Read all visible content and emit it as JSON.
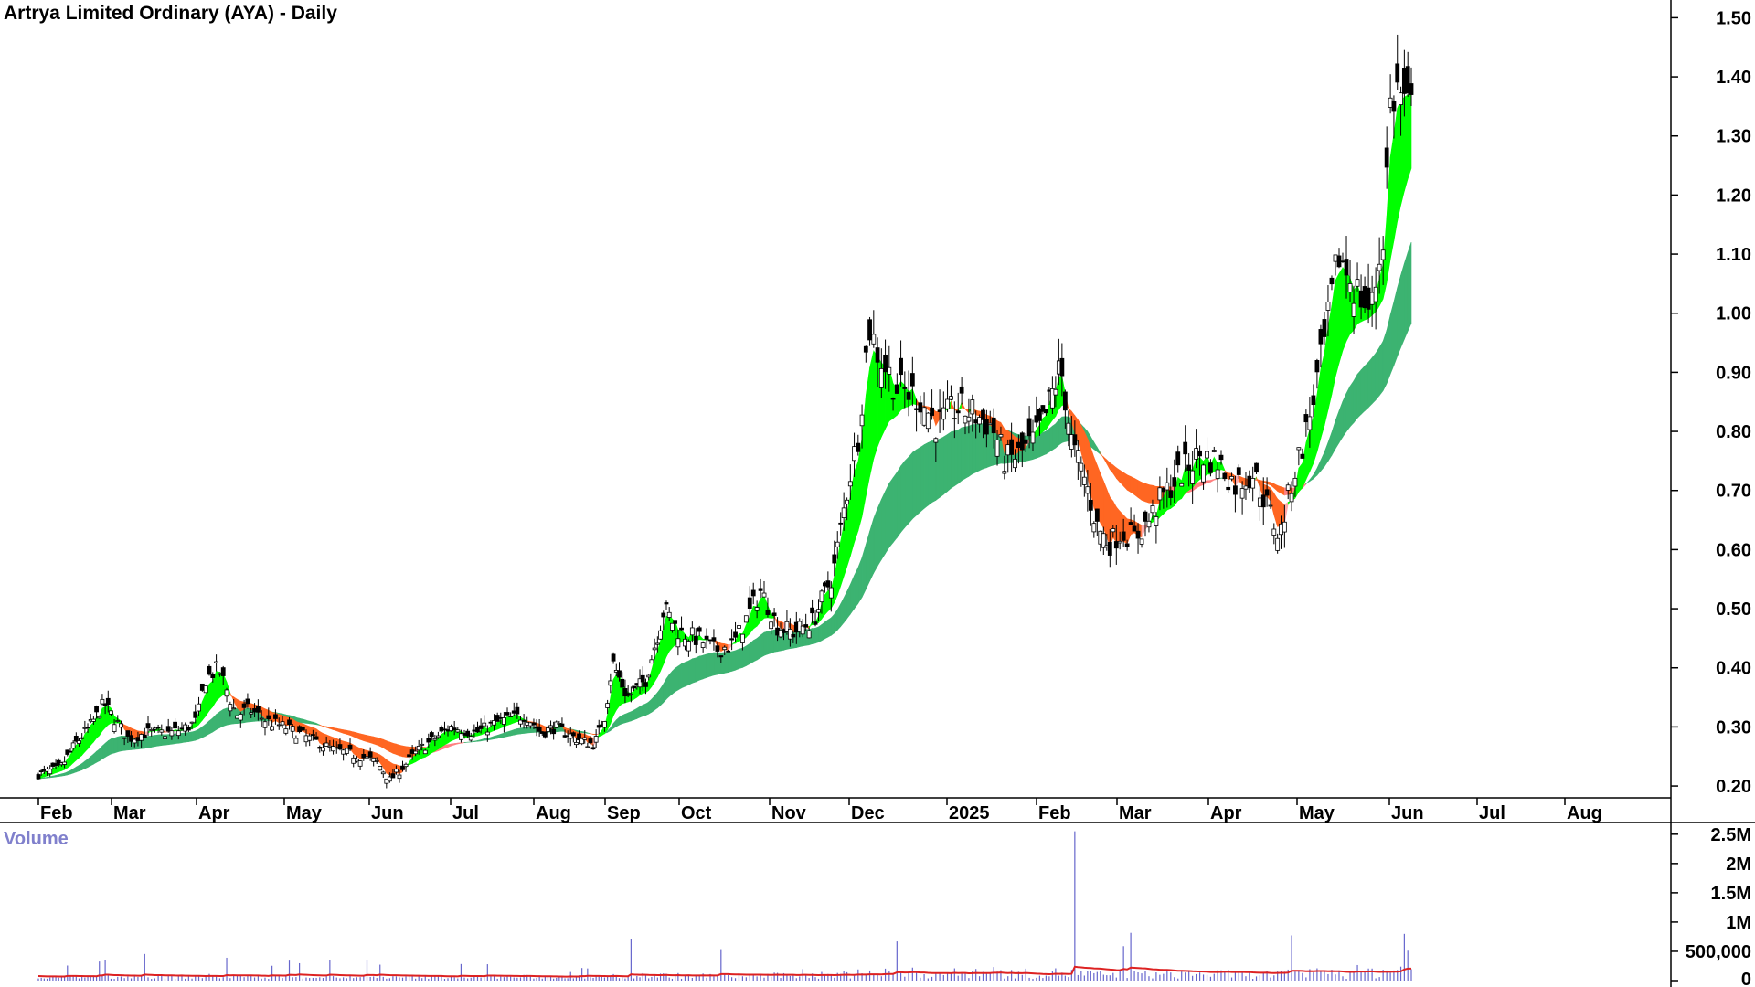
{
  "header": {
    "title": "Artrya Limited Ordinary (AYA) - Daily"
  },
  "volume_panel": {
    "title": "Volume"
  },
  "colors": {
    "up_candle": "#ffffff",
    "down_candle": "#000000",
    "short_band_bull": "#00ff00",
    "short_band_bear": "#ff6622",
    "short_band_weak": "#ffaaaa",
    "long_band_bull": "#3cb371",
    "long_band_bear": "#ff6622",
    "long_band_weak": "#ff8080",
    "volume_bar": "#6666cc",
    "volume_avg": "#dd2222"
  },
  "chart_data": [
    {
      "type": "candlestick",
      "title": "Artrya Limited Ordinary (AYA) - Daily",
      "x_tick_labels": [
        "Feb",
        "Mar",
        "Apr",
        "May",
        "Jun",
        "Jul",
        "Aug",
        "Sep",
        "Oct",
        "Nov",
        "Dec",
        "2025",
        "Feb",
        "Mar",
        "Apr",
        "May",
        "Jun",
        "Jul",
        "Aug"
      ],
      "x_ticks_month_index": [
        1,
        2,
        3,
        4,
        5,
        6,
        7,
        8,
        9,
        10,
        11,
        12,
        13,
        14,
        15,
        16,
        17,
        18,
        19
      ],
      "y_tick_labels": [
        "1.50",
        "1.40",
        "1.30",
        "1.20",
        "1.10",
        "1.00",
        "0.90",
        "0.80",
        "0.70",
        "0.60",
        "0.50",
        "0.40",
        "0.30",
        "0.20"
      ],
      "y_ticks": [
        1.5,
        1.4,
        1.3,
        1.2,
        1.1,
        1.0,
        0.9,
        0.8,
        0.7,
        0.6,
        0.5,
        0.4,
        0.3,
        0.2
      ],
      "ylim": [
        0.18,
        1.53
      ],
      "y_axis_position": "right",
      "grid": false,
      "close_anchors": [
        [
          0.0,
          0.22
        ],
        [
          0.3,
          0.23
        ],
        [
          0.5,
          0.27
        ],
        [
          0.7,
          0.3
        ],
        [
          0.9,
          0.34
        ],
        [
          1.0,
          0.32
        ],
        [
          1.2,
          0.28
        ],
        [
          1.4,
          0.29
        ],
        [
          1.7,
          0.29
        ],
        [
          1.9,
          0.3
        ],
        [
          2.0,
          0.31
        ],
        [
          2.1,
          0.38
        ],
        [
          2.25,
          0.4
        ],
        [
          2.45,
          0.32
        ],
        [
          2.6,
          0.33
        ],
        [
          2.8,
          0.31
        ],
        [
          3.0,
          0.3
        ],
        [
          3.3,
          0.28
        ],
        [
          3.6,
          0.26
        ],
        [
          3.9,
          0.25
        ],
        [
          4.1,
          0.24
        ],
        [
          4.25,
          0.21
        ],
        [
          4.4,
          0.23
        ],
        [
          4.6,
          0.26
        ],
        [
          4.8,
          0.28
        ],
        [
          5.0,
          0.3
        ],
        [
          5.3,
          0.29
        ],
        [
          5.6,
          0.31
        ],
        [
          5.9,
          0.32
        ],
        [
          6.1,
          0.29
        ],
        [
          6.3,
          0.3
        ],
        [
          6.6,
          0.28
        ],
        [
          6.85,
          0.27
        ],
        [
          7.0,
          0.32
        ],
        [
          7.1,
          0.41
        ],
        [
          7.3,
          0.35
        ],
        [
          7.55,
          0.38
        ],
        [
          7.8,
          0.5
        ],
        [
          8.0,
          0.46
        ],
        [
          8.2,
          0.45
        ],
        [
          8.4,
          0.43
        ],
        [
          8.6,
          0.44
        ],
        [
          8.9,
          0.53
        ],
        [
          9.1,
          0.47
        ],
        [
          9.3,
          0.46
        ],
        [
          9.55,
          0.48
        ],
        [
          9.8,
          0.56
        ],
        [
          10.0,
          0.72
        ],
        [
          10.1,
          0.8
        ],
        [
          10.2,
          0.98
        ],
        [
          10.3,
          0.93
        ],
        [
          10.5,
          0.87
        ],
        [
          10.7,
          0.86
        ],
        [
          10.9,
          0.81
        ],
        [
          11.1,
          0.84
        ],
        [
          11.3,
          0.83
        ],
        [
          11.5,
          0.81
        ],
        [
          11.65,
          0.75
        ],
        [
          11.8,
          0.76
        ],
        [
          11.95,
          0.78
        ],
        [
          12.1,
          0.82
        ],
        [
          12.3,
          0.91
        ],
        [
          12.45,
          0.77
        ],
        [
          12.6,
          0.72
        ],
        [
          12.75,
          0.64
        ],
        [
          12.9,
          0.61
        ],
        [
          13.05,
          0.63
        ],
        [
          13.2,
          0.62
        ],
        [
          13.35,
          0.65
        ],
        [
          13.5,
          0.69
        ],
        [
          13.7,
          0.73
        ],
        [
          13.9,
          0.76
        ],
        [
          14.1,
          0.75
        ],
        [
          14.3,
          0.71
        ],
        [
          14.5,
          0.73
        ],
        [
          14.65,
          0.68
        ],
        [
          14.8,
          0.62
        ],
        [
          14.95,
          0.72
        ],
        [
          15.1,
          0.8
        ],
        [
          15.3,
          0.95
        ],
        [
          15.45,
          1.1
        ],
        [
          15.6,
          1.05
        ],
        [
          15.8,
          1.0
        ],
        [
          15.9,
          1.1
        ],
        [
          15.95,
          1.15
        ],
        [
          16.0,
          1.35
        ],
        [
          16.1,
          1.38
        ],
        [
          16.2,
          1.34
        ]
      ],
      "volume_panel": {
        "y_tick_labels": [
          "2.5M",
          "2M",
          "1.5M",
          "1M",
          "500,000",
          "0"
        ],
        "y_ticks": [
          2500000,
          2000000,
          1500000,
          1000000,
          500000,
          0
        ],
        "ylim": [
          0,
          2700000
        ]
      }
    }
  ]
}
